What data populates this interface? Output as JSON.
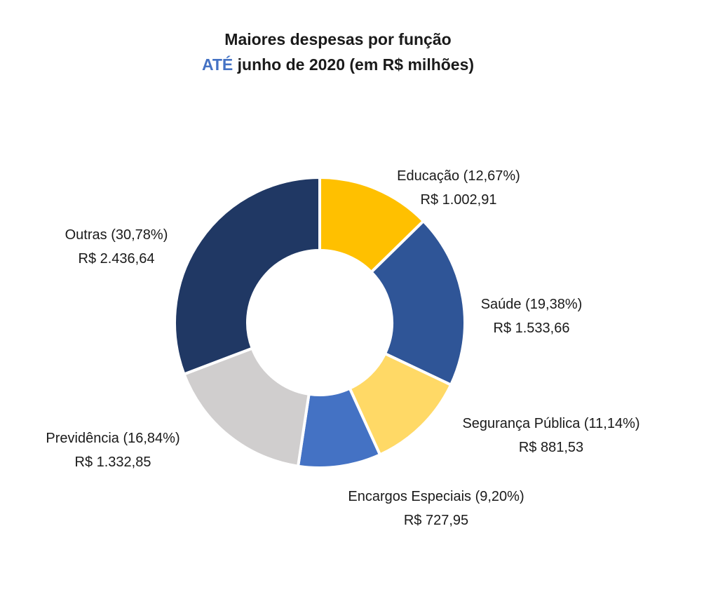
{
  "chart_data": {
    "type": "pie",
    "donut": true,
    "title": "Maiores despesas por função",
    "subtitle_accent": "ATÉ",
    "subtitle_rest": "junho de 2020 (em R$ milhões)",
    "slices": [
      {
        "name": "Educação",
        "percent": 12.67,
        "percent_label": "(12,67%)",
        "value": 1002.91,
        "value_label": "R$ 1.002,91",
        "color": "#FFC000"
      },
      {
        "name": "Saúde",
        "percent": 19.38,
        "percent_label": "(19,38%)",
        "value": 1533.66,
        "value_label": "R$ 1.533,66",
        "color": "#2F5597"
      },
      {
        "name": "Segurança Pública",
        "percent": 11.14,
        "percent_label": "(11,14%)",
        "value": 881.53,
        "value_label": "R$ 881,53",
        "color": "#FFD966"
      },
      {
        "name": "Encargos Especiais",
        "percent": 9.2,
        "percent_label": "(9,20%)",
        "value": 727.95,
        "value_label": "R$ 727,95",
        "color": "#4472C4"
      },
      {
        "name": "Previdência",
        "percent": 16.84,
        "percent_label": "(16,84%)",
        "value": 1332.85,
        "value_label": "R$ 1.332,85",
        "color": "#D0CECE"
      },
      {
        "name": "Outras",
        "percent": 30.78,
        "percent_label": " (30,78%)",
        "value": 2436.64,
        "value_label": "R$ 2.436,64",
        "color": "#203864"
      }
    ]
  }
}
